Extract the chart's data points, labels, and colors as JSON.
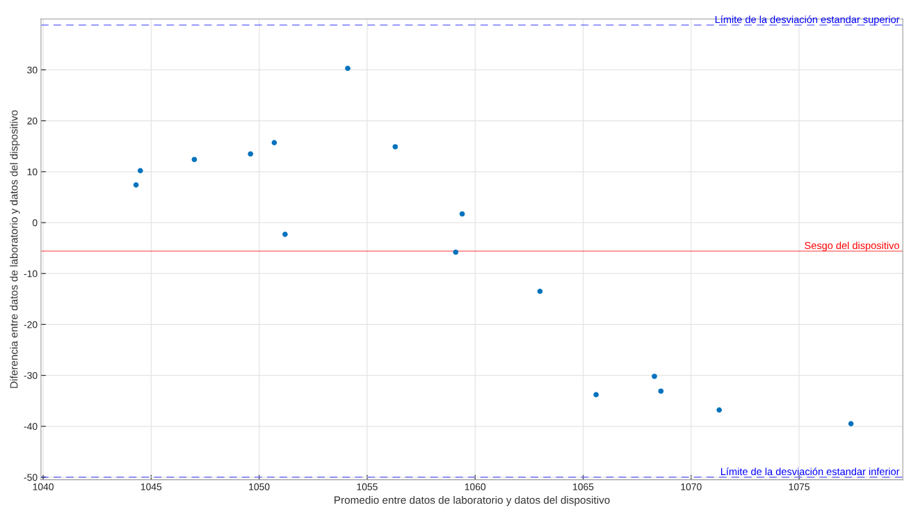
{
  "chart_data": {
    "type": "scatter",
    "xlabel": "Promedio entre datos de laboratorio y datos del dispositivo",
    "ylabel": "Diferencia entre datos de laboratorio y datos del dispositivo",
    "x": [
      1044.3,
      1044.5,
      1047.0,
      1049.6,
      1050.7,
      1051.2,
      1054.1,
      1056.3,
      1059.1,
      1059.4,
      1063.0,
      1065.6,
      1068.3,
      1068.6,
      1071.3,
      1077.4
    ],
    "series": [
      {
        "color": "#0072bd",
        "values": [
          7.4,
          10.2,
          12.4,
          13.5,
          15.7,
          -2.3,
          30.3,
          14.9,
          -5.8,
          1.7,
          -13.5,
          -33.8,
          -30.2,
          -33.1,
          -36.8,
          -39.5
        ]
      }
    ],
    "marker": "circle",
    "xlim": [
      1039.9,
      1079.8
    ],
    "xticks": [
      1040,
      1045,
      1050,
      1055,
      1060,
      1065,
      1070,
      1075
    ],
    "ylim": [
      -50.5,
      40
    ],
    "yticks": [
      -50,
      -40,
      -30,
      -20,
      -10,
      0,
      10,
      20,
      30
    ],
    "grid": true,
    "ref_lines": [
      {
        "axis": "y",
        "value": 38.8,
        "label": "Límite de la desviación estandar superior",
        "color": "#0000ff",
        "line_style": "dashed"
      },
      {
        "axis": "y",
        "value": -5.6,
        "label": "Sesgo del dispositivo",
        "color": "#ff0000",
        "line_style": "solid"
      },
      {
        "axis": "y",
        "value": -50.0,
        "label": "Límite de la desviación estandar inferior",
        "color": "#0000ff",
        "line_style": "dashed"
      }
    ]
  }
}
